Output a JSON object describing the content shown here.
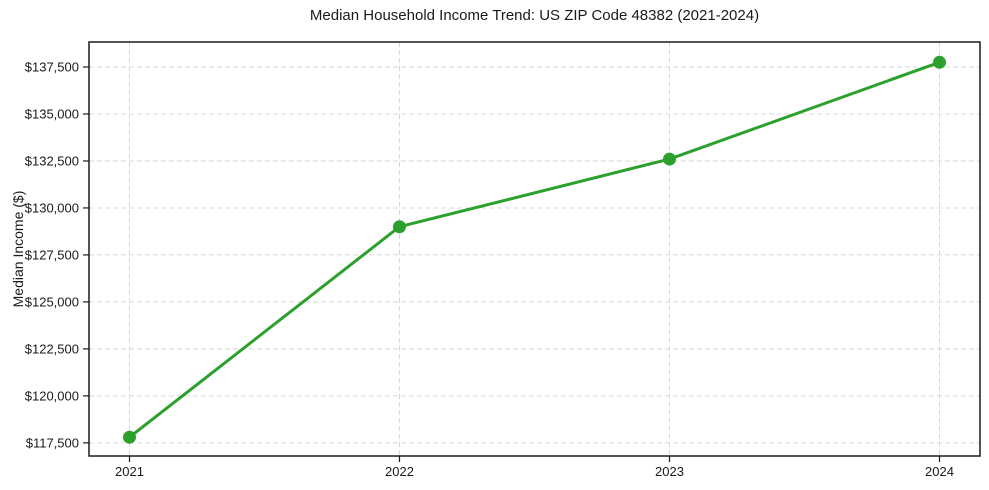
{
  "chart_data": {
    "type": "line",
    "title": "Median Household Income Trend: US ZIP Code 48382 (2021-2024)",
    "xlabel": "",
    "ylabel": "Median Income ($)",
    "x": [
      2021,
      2022,
      2023,
      2024
    ],
    "x_tick_labels": [
      "2021",
      "2022",
      "2023",
      "2024"
    ],
    "values": [
      117800,
      129000,
      132600,
      137750
    ],
    "y_ticks": [
      117500,
      120000,
      122500,
      125000,
      127500,
      130000,
      132500,
      135000,
      137500
    ],
    "y_tick_labels": [
      "$117,500",
      "$120,000",
      "$122,500",
      "$125,000",
      "$127,500",
      "$130,000",
      "$132,500",
      "$135,000",
      "$137,500"
    ],
    "ylim": [
      116800,
      138830
    ],
    "xlim": [
      2020.85,
      2024.15
    ],
    "grid": "dashed-both-axes",
    "legend": "none",
    "marker": "circle",
    "colors": {
      "line": "#2ca02c",
      "marker": "#2ca02c",
      "grid": "#d8d8d8",
      "spine": "#1a1a1a",
      "tick_text": "#1a1a1a",
      "background": "#ffffff"
    }
  }
}
